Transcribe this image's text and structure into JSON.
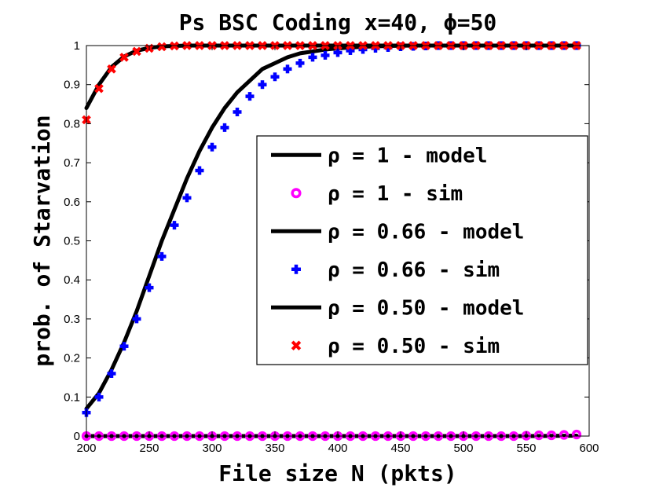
{
  "chart_data": {
    "type": "line",
    "title": "Ps BSC Coding x=40, ϕ=50",
    "xlabel": "File size N (pkts)",
    "ylabel": "prob. of Starvation",
    "xlim": [
      200,
      600
    ],
    "ylim": [
      0,
      1
    ],
    "xticks": [
      200,
      250,
      300,
      350,
      400,
      450,
      500,
      550,
      600
    ],
    "yticks": [
      0,
      0.1,
      0.2,
      0.3,
      0.4,
      0.5,
      0.6,
      0.7,
      0.8,
      0.9,
      1
    ],
    "grid": false,
    "legend_position": "center-right",
    "series": [
      {
        "name": "ρ = 1 - model",
        "style": "line",
        "color": "#000000",
        "x": [
          200,
          250,
          300,
          350,
          400,
          450,
          500,
          550,
          590
        ],
        "y": [
          0,
          0,
          0,
          0,
          0,
          0,
          0,
          0,
          0.001
        ]
      },
      {
        "name": "ρ = 1 - sim",
        "style": "marker",
        "marker": "circle",
        "color": "#ff00ff",
        "x": [
          200,
          210,
          220,
          230,
          240,
          250,
          260,
          270,
          280,
          290,
          300,
          310,
          320,
          330,
          340,
          350,
          360,
          370,
          380,
          390,
          400,
          410,
          420,
          430,
          440,
          450,
          460,
          470,
          480,
          490,
          500,
          510,
          520,
          530,
          540,
          550,
          560,
          570,
          580,
          590
        ],
        "y": [
          0,
          0,
          0,
          0,
          0,
          0,
          0,
          0,
          0,
          0,
          0,
          0,
          0,
          0,
          0,
          0,
          0,
          0,
          0,
          0,
          0,
          0,
          0,
          0,
          0,
          0,
          0,
          0,
          0,
          0,
          0,
          0,
          0,
          0,
          0,
          0.001,
          0.002,
          0.002,
          0.003,
          0.004
        ]
      },
      {
        "name": "ρ = 0.66 - model",
        "style": "line",
        "color": "#000000",
        "x": [
          200,
          210,
          220,
          230,
          240,
          250,
          260,
          270,
          280,
          290,
          300,
          310,
          320,
          330,
          340,
          350,
          360,
          370,
          380,
          390,
          400,
          420,
          440,
          460,
          480,
          500,
          550,
          590
        ],
        "y": [
          0.07,
          0.11,
          0.17,
          0.24,
          0.32,
          0.41,
          0.5,
          0.58,
          0.66,
          0.73,
          0.79,
          0.84,
          0.88,
          0.91,
          0.94,
          0.955,
          0.97,
          0.98,
          0.985,
          0.99,
          0.993,
          0.997,
          0.999,
          1,
          1,
          1,
          1,
          1
        ]
      },
      {
        "name": "ρ = 0.66 - sim",
        "style": "marker",
        "marker": "plus",
        "color": "#0000ff",
        "x": [
          200,
          210,
          220,
          230,
          240,
          250,
          260,
          270,
          280,
          290,
          300,
          310,
          320,
          330,
          340,
          350,
          360,
          370,
          380,
          390,
          400,
          410,
          420,
          430,
          440,
          450,
          460,
          470,
          480,
          490,
          500,
          510,
          520,
          530,
          540,
          550,
          560,
          570,
          580,
          590
        ],
        "y": [
          0.06,
          0.1,
          0.16,
          0.23,
          0.3,
          0.38,
          0.46,
          0.54,
          0.61,
          0.68,
          0.74,
          0.79,
          0.83,
          0.87,
          0.9,
          0.92,
          0.94,
          0.955,
          0.97,
          0.975,
          0.982,
          0.987,
          0.99,
          0.993,
          0.995,
          0.997,
          0.998,
          0.999,
          1,
          1,
          1,
          1,
          1,
          1,
          1,
          1,
          1,
          1,
          1,
          1
        ]
      },
      {
        "name": "ρ = 0.50 - model",
        "style": "line",
        "color": "#000000",
        "x": [
          200,
          210,
          220,
          230,
          240,
          250,
          260,
          270,
          280,
          300,
          350,
          400,
          450,
          500,
          550,
          590
        ],
        "y": [
          0.84,
          0.9,
          0.945,
          0.972,
          0.987,
          0.994,
          0.998,
          0.999,
          1,
          1,
          1,
          1,
          1,
          1,
          1,
          1
        ]
      },
      {
        "name": "ρ = 0.50 - sim",
        "style": "marker",
        "marker": "x",
        "color": "#ff0000",
        "x": [
          200,
          210,
          220,
          230,
          240,
          250,
          260,
          270,
          280,
          290,
          300,
          310,
          320,
          330,
          340,
          350,
          360,
          370,
          380,
          390,
          400,
          410,
          420,
          430,
          440,
          450,
          460,
          470,
          480,
          490,
          500,
          510,
          520,
          530,
          540,
          550,
          560,
          570,
          580,
          590
        ],
        "y": [
          0.81,
          0.89,
          0.94,
          0.97,
          0.985,
          0.993,
          0.997,
          0.999,
          1,
          1,
          1,
          1,
          1,
          1,
          1,
          1,
          1,
          1,
          1,
          1,
          1,
          1,
          1,
          1,
          1,
          1,
          1,
          1,
          1,
          1,
          1,
          1,
          1,
          1,
          1,
          1,
          1,
          1,
          1,
          1
        ]
      }
    ]
  }
}
